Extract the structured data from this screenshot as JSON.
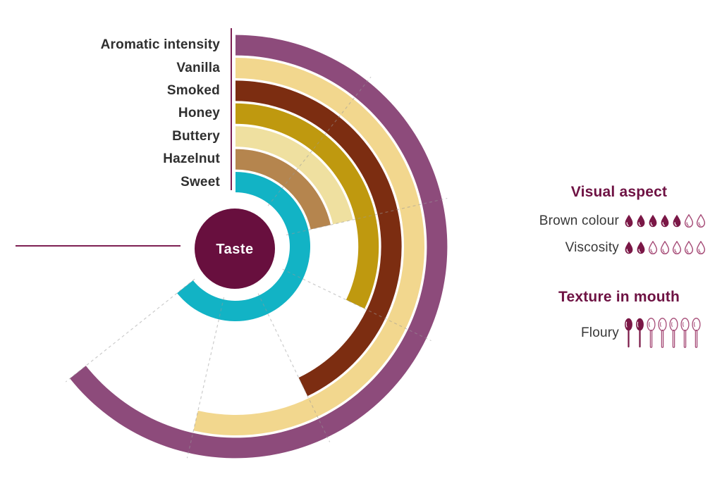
{
  "chart_data": {
    "type": "bar",
    "subtype": "radial-arc",
    "title": "",
    "center_label": "Taste",
    "categories": [
      "Aromatic intensity",
      "Vanilla",
      "Smoked",
      "Honey",
      "Buttery",
      "Hazelnut",
      "Sweet"
    ],
    "values": [
      6,
      5,
      4,
      3,
      2,
      2,
      6
    ],
    "series_colors": [
      "#8d4b7b",
      "#f2d78e",
      "#7c2d11",
      "#bf990f",
      "#efe0a0",
      "#b5854e",
      "#12b3c5"
    ],
    "ring_order": "outermost (Aromatic intensity) to innermost (Sweet)",
    "scale": {
      "min": 0,
      "max": 7,
      "degrees_per_unit": 38.5714,
      "start": "12 o'clock, sweeping clockwise",
      "full_scale_angle_deg": 270
    },
    "grid": "dashed radial lines at each unit (1-6); solid start line at 0; solid end line at 7 (pointing left)",
    "legend_position": "labels stacked left of chart, aligned to ring start"
  },
  "right_panel": {
    "sections": [
      {
        "title": "Visual aspect",
        "rows": [
          {
            "label": "Brown colour",
            "icon": "droplet",
            "filled": 5,
            "total": 7
          },
          {
            "label": "Viscosity",
            "icon": "droplet",
            "filled": 2,
            "total": 7
          }
        ]
      },
      {
        "title": "Texture in mouth",
        "rows": [
          {
            "label": "Floury",
            "icon": "spoon",
            "filled": 2,
            "total": 7
          }
        ]
      }
    ]
  },
  "colors": {
    "hub": "#680f3e",
    "hub_text": "#ffffff",
    "heading": "#6e1243",
    "axis_line": "#7d2053",
    "tick": "#999999",
    "icon_filled": "#7a1746",
    "icon_outline": "#a54a76",
    "label_text": "#2f2f2f"
  }
}
